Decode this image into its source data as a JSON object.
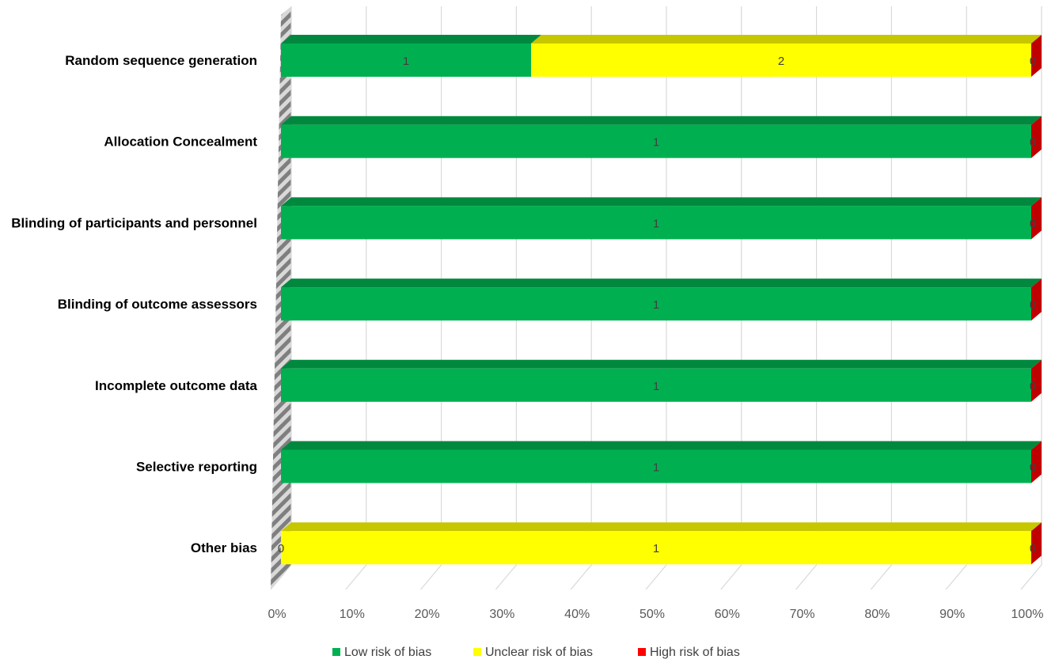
{
  "chart_data": {
    "type": "bar",
    "orientation": "horizontal",
    "stacked": "percent",
    "categories": [
      "Random sequence generation",
      "Allocation Concealment",
      "Blinding of participants and personnel",
      "Blinding of outcome assessors",
      "Incomplete outcome data",
      "Selective reporting",
      "Other bias"
    ],
    "series": [
      {
        "name": "Low risk of bias",
        "color": "#00b050",
        "values": [
          1,
          1,
          1,
          1,
          1,
          1,
          0
        ]
      },
      {
        "name": "Unclear risk of bias",
        "color": "#ffff00",
        "values": [
          2,
          0,
          0,
          0,
          0,
          0,
          1
        ]
      },
      {
        "name": "High risk of bias",
        "color": "#c00000",
        "values": [
          0,
          0,
          0,
          0,
          0,
          0,
          0
        ]
      }
    ],
    "x_ticks": [
      "0%",
      "10%",
      "20%",
      "30%",
      "40%",
      "50%",
      "60%",
      "70%",
      "80%",
      "90%",
      "100%"
    ],
    "xlim": [
      0,
      100
    ],
    "grid": true,
    "legend_position": "bottom",
    "title": "",
    "xlabel": "",
    "ylabel": ""
  }
}
